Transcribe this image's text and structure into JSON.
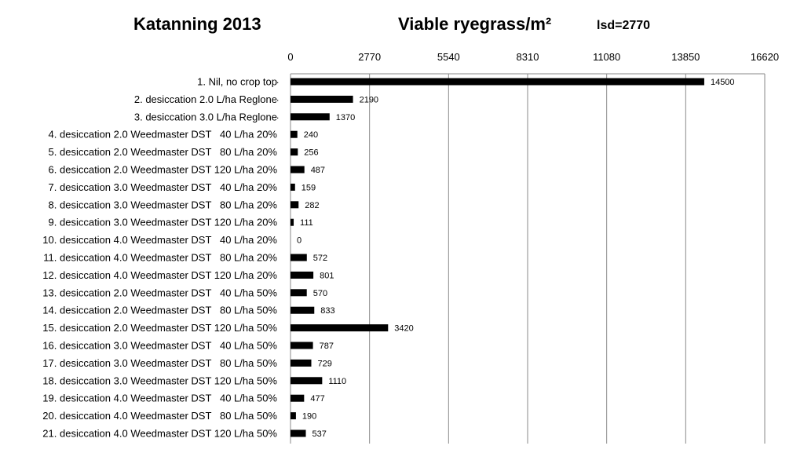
{
  "titles": {
    "site": "Katanning 2013",
    "measure": "Viable ryegrass/m²",
    "lsd": "lsd=2770"
  },
  "chart_data": {
    "type": "bar",
    "orientation": "horizontal",
    "xlim": [
      0,
      16620
    ],
    "xticks": [
      "0",
      "2770",
      "5540",
      "8310",
      "11080",
      "13850",
      "16620"
    ],
    "grid": "vertical",
    "bar_color": "#000000",
    "categories": [
      "1. Nil, no crop top",
      "2. desiccation 2.0 L/ha Reglone",
      "3. desiccation 3.0 L/ha Reglone",
      "4. desiccation 2.0 Weedmaster DST   40 L/ha 20%",
      "5. desiccation 2.0 Weedmaster DST   80 L/ha 20%",
      "6. desiccation 2.0 Weedmaster DST 120 L/ha 20%",
      "7. desiccation 3.0 Weedmaster DST   40 L/ha 20%",
      "8. desiccation 3.0 Weedmaster DST   80 L/ha 20%",
      "9. desiccation 3.0 Weedmaster DST 120 L/ha 20%",
      "10. desiccation 4.0 Weedmaster DST   40 L/ha 20%",
      "11. desiccation 4.0 Weedmaster DST   80 L/ha 20%",
      "12. desiccation 4.0 Weedmaster DST 120 L/ha 20%",
      "13. desiccation 2.0 Weedmaster DST   40 L/ha 50%",
      "14. desiccation 2.0 Weedmaster DST   80 L/ha 50%",
      "15. desiccation 2.0 Weedmaster DST 120 L/ha 50%",
      "16. desiccation 3.0 Weedmaster DST   40 L/ha 50%",
      "17. desiccation 3.0 Weedmaster DST   80 L/ha 50%",
      "18. desiccation 3.0 Weedmaster DST 120 L/ha 50%",
      "19. desiccation 4.0 Weedmaster DST   40 L/ha 50%",
      "20. desiccation 4.0 Weedmaster DST   80 L/ha 50%",
      "21. desiccation 4.0 Weedmaster DST 120 L/ha 50%"
    ],
    "values": [
      14500,
      2190,
      1370,
      240,
      256,
      487,
      159,
      282,
      111,
      0,
      572,
      801,
      570,
      833,
      3420,
      787,
      729,
      1110,
      477,
      190,
      537
    ],
    "data_labels": [
      "14500",
      "2190",
      "1370",
      "240",
      "256",
      "487",
      "159",
      "282",
      "111",
      "0",
      "572",
      "801",
      "570",
      "833",
      "3420",
      "787",
      "729",
      "1110",
      "477",
      "190",
      "537"
    ],
    "dot_marks": [
      ".",
      ".",
      "."
    ]
  }
}
